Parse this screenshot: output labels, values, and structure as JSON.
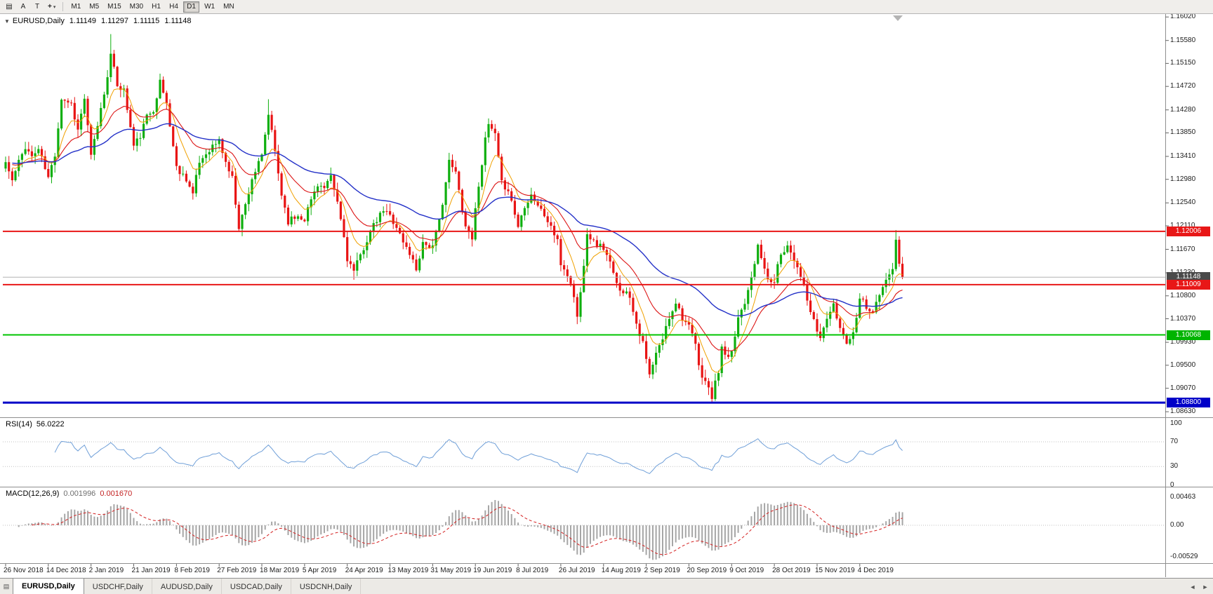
{
  "toolbar": {
    "chart_grid_icon": "▤",
    "tool_a": "A",
    "tool_t": "T",
    "crosshair_icon": "+",
    "dropdown_caret": "▾",
    "timeframes": [
      {
        "label": "M1",
        "active": false
      },
      {
        "label": "M5",
        "active": false
      },
      {
        "label": "M15",
        "active": false
      },
      {
        "label": "M30",
        "active": false
      },
      {
        "label": "H1",
        "active": false
      },
      {
        "label": "H4",
        "active": false
      },
      {
        "label": "D1",
        "active": true
      },
      {
        "label": "W1",
        "active": false
      },
      {
        "label": "MN",
        "active": false
      }
    ]
  },
  "chart": {
    "title": {
      "marker": "▼",
      "symbol": "EURUSD,Daily",
      "open": "1.11149",
      "high": "1.11297",
      "low": "1.11115",
      "close": "1.11148"
    },
    "price_axis_ticks": [
      "1.16020",
      "1.15580",
      "1.15150",
      "1.14720",
      "1.14280",
      "1.13850",
      "1.13410",
      "1.12980",
      "1.12540",
      "1.12110",
      "1.11670",
      "1.11230",
      "1.10800",
      "1.10370",
      "1.09930",
      "1.09500",
      "1.09070",
      "1.08630"
    ],
    "badges": [
      {
        "value": "1.12006",
        "bg": "#e81717",
        "fg": "#ffffff"
      },
      {
        "value": "1.11148",
        "bg": "#4a4a4a",
        "fg": "#ffffff"
      },
      {
        "value": "1.11009",
        "bg": "#e81717",
        "fg": "#ffffff"
      },
      {
        "value": "1.10068",
        "bg": "#00b400",
        "fg": "#ffffff"
      },
      {
        "value": "1.08800",
        "bg": "#0000c8",
        "fg": "#ffffff"
      }
    ],
    "hlines": [
      {
        "price": 1.12006,
        "color": "#e81717",
        "width": 2
      },
      {
        "price": 1.11009,
        "color": "#e81717",
        "width": 2
      },
      {
        "price": 1.10068,
        "color": "#00c400",
        "width": 2
      },
      {
        "price": 1.088,
        "color": "#0000c8",
        "width": 3
      }
    ],
    "current_price": 1.11148,
    "colors": {
      "up": "#0faf0f",
      "down": "#e81414",
      "ma_fast": "#f0a000",
      "ma_mid": "#dc1414",
      "ma_slow": "#2431c8",
      "current_line": "#b4b4b4"
    }
  },
  "rsi": {
    "label": "RSI(14)",
    "value": "56.0222",
    "period": 14,
    "levels": [
      "100",
      "70",
      "30",
      "0"
    ],
    "level_values": [
      100,
      70,
      30,
      0
    ],
    "color": "#6f9fd8"
  },
  "macd": {
    "label": "MACD(12,26,9)",
    "main_value": "0.001996",
    "signal_value": "0.001670",
    "axis_labels": [
      "0.00463",
      "0.00",
      "-0.00529"
    ],
    "axis_values": [
      0.00463,
      0,
      -0.00529
    ],
    "bar_color": "#a6a6a6",
    "signal_color": "#d42020"
  },
  "date_axis": {
    "step_candles": 13,
    "labels": [
      "26 Nov 2018",
      "14 Dec 2018",
      "2 Jan 2019",
      "21 Jan 2019",
      "8 Feb 2019",
      "27 Feb 2019",
      "18 Mar 2019",
      "5 Apr 2019",
      "24 Apr 2019",
      "13 May 2019",
      "31 May 2019",
      "19 Jun 2019",
      "8 Jul 2019",
      "26 Jul 2019",
      "14 Aug 2019",
      "2 Sep 2019",
      "20 Sep 2019",
      "9 Oct 2019",
      "28 Oct 2019",
      "15 Nov 2019",
      "4 Dec 2019"
    ]
  },
  "tabs": {
    "list_icon": "▤",
    "scroll_left": "◄",
    "scroll_right": "►",
    "items": [
      {
        "label": "EURUSD,Daily",
        "active": true
      },
      {
        "label": "USDCHF,Daily",
        "active": false
      },
      {
        "label": "AUDUSD,Daily",
        "active": false
      },
      {
        "label": "USDCAD,Daily",
        "active": false
      },
      {
        "label": "USDCNH,Daily",
        "active": false
      }
    ]
  },
  "chart_data": {
    "type": "candlestick",
    "symbol": "EURUSD",
    "timeframe": "Daily",
    "last_ohlc": {
      "open": 1.11149,
      "high": 1.11297,
      "low": 1.11115,
      "close": 1.11148
    },
    "visible_price_axis_range": [
      1.0863,
      1.1602
    ],
    "n_candles": 274,
    "close_anchors": [
      [
        0,
        1.133
      ],
      [
        2,
        1.1295
      ],
      [
        4,
        1.133
      ],
      [
        6,
        1.136
      ],
      [
        8,
        1.134
      ],
      [
        10,
        1.1355
      ],
      [
        13,
        1.13
      ],
      [
        15,
        1.1345
      ],
      [
        17,
        1.145
      ],
      [
        20,
        1.144
      ],
      [
        22,
        1.139
      ],
      [
        24,
        1.145
      ],
      [
        26,
        1.134
      ],
      [
        28,
        1.14
      ],
      [
        30,
        1.146
      ],
      [
        32,
        1.153
      ],
      [
        34,
        1.1475
      ],
      [
        36,
        1.1465
      ],
      [
        39,
        1.136
      ],
      [
        41,
        1.138
      ],
      [
        43,
        1.1415
      ],
      [
        45,
        1.143
      ],
      [
        47,
        1.148
      ],
      [
        49,
        1.144
      ],
      [
        52,
        1.132
      ],
      [
        55,
        1.13
      ],
      [
        57,
        1.127
      ],
      [
        59,
        1.133
      ],
      [
        62,
        1.1355
      ],
      [
        65,
        1.137
      ],
      [
        67,
        1.133
      ],
      [
        69,
        1.13
      ],
      [
        71,
        1.121
      ],
      [
        73,
        1.125
      ],
      [
        75,
        1.13
      ],
      [
        78,
        1.134
      ],
      [
        80,
        1.142
      ],
      [
        82,
        1.135
      ],
      [
        84,
        1.127
      ],
      [
        86,
        1.122
      ],
      [
        89,
        1.123
      ],
      [
        91,
        1.1225
      ],
      [
        93,
        1.126
      ],
      [
        95,
        1.129
      ],
      [
        97,
        1.128
      ],
      [
        99,
        1.13
      ],
      [
        101,
        1.1255
      ],
      [
        103,
        1.119
      ],
      [
        104,
        1.115
      ],
      [
        106,
        1.1125
      ],
      [
        108,
        1.1155
      ],
      [
        111,
        1.12
      ],
      [
        113,
        1.122
      ],
      [
        115,
        1.124
      ],
      [
        117,
        1.123
      ],
      [
        119,
        1.121
      ],
      [
        121,
        1.118
      ],
      [
        123,
        1.116
      ],
      [
        125,
        1.113
      ],
      [
        127,
        1.118
      ],
      [
        130,
        1.117
      ],
      [
        132,
        1.122
      ],
      [
        135,
        1.133
      ],
      [
        137,
        1.131
      ],
      [
        140,
        1.121
      ],
      [
        142,
        1.119
      ],
      [
        144,
        1.129
      ],
      [
        146,
        1.137
      ],
      [
        147,
        1.14
      ],
      [
        149,
        1.138
      ],
      [
        151,
        1.129
      ],
      [
        153,
        1.128
      ],
      [
        156,
        1.121
      ],
      [
        158,
        1.125
      ],
      [
        160,
        1.127
      ],
      [
        162,
        1.125
      ],
      [
        164,
        1.123
      ],
      [
        166,
        1.121
      ],
      [
        168,
        1.118
      ],
      [
        169,
        1.114
      ],
      [
        171,
        1.112
      ],
      [
        173,
        1.108
      ],
      [
        174,
        1.104
      ],
      [
        175,
        1.1085
      ],
      [
        177,
        1.12
      ],
      [
        179,
        1.118
      ],
      [
        182,
        1.117
      ],
      [
        184,
        1.114
      ],
      [
        186,
        1.11
      ],
      [
        188,
        1.109
      ],
      [
        190,
        1.108
      ],
      [
        192,
        1.103
      ],
      [
        194,
        1.099
      ],
      [
        196,
        1.093
      ],
      [
        198,
        1.097
      ],
      [
        200,
        1.1
      ],
      [
        202,
        1.104
      ],
      [
        204,
        1.107
      ],
      [
        206,
        1.104
      ],
      [
        208,
        1.102
      ],
      [
        210,
        1.099
      ],
      [
        211,
        1.0945
      ],
      [
        213,
        1.092
      ],
      [
        215,
        1.089
      ],
      [
        217,
        1.094
      ],
      [
        218,
        1.098
      ],
      [
        220,
        1.096
      ],
      [
        221,
        1.097
      ],
      [
        223,
        1.104
      ],
      [
        225,
        1.107
      ],
      [
        227,
        1.112
      ],
      [
        229,
        1.117
      ],
      [
        231,
        1.113
      ],
      [
        233,
        1.11
      ],
      [
        234,
        1.111
      ],
      [
        236,
        1.116
      ],
      [
        238,
        1.1175
      ],
      [
        240,
        1.115
      ],
      [
        242,
        1.112
      ],
      [
        244,
        1.107
      ],
      [
        246,
        1.103
      ],
      [
        248,
        1.1
      ],
      [
        250,
        1.104
      ],
      [
        252,
        1.106
      ],
      [
        254,
        1.102
      ],
      [
        256,
        1.0995
      ],
      [
        258,
        1.101
      ],
      [
        260,
        1.108
      ],
      [
        262,
        1.106
      ],
      [
        264,
        1.105
      ],
      [
        266,
        1.108
      ],
      [
        268,
        1.111
      ],
      [
        270,
        1.113
      ],
      [
        271,
        1.1185
      ],
      [
        272,
        1.114
      ],
      [
        273,
        1.1115
      ]
    ],
    "high_overrides": {
      "32": 1.157,
      "80": 1.1448,
      "147": 1.1412,
      "271": 1.1203
    },
    "low_overrides": {
      "106": 1.111,
      "174": 1.1027,
      "196": 1.0926,
      "215": 1.0879
    },
    "moving_averages": [
      {
        "period": 8,
        "color_key": "ma_fast",
        "width": 1
      },
      {
        "period": 21,
        "color_key": "ma_mid",
        "width": 1.1
      },
      {
        "period": 55,
        "color_key": "ma_slow",
        "width": 1.4
      }
    ],
    "indicators": [
      {
        "name": "RSI",
        "params": [
          14
        ],
        "last_value": 56.0222
      },
      {
        "name": "MACD",
        "params": [
          12,
          26,
          9
        ],
        "last_values": [
          0.001996,
          0.00167
        ]
      }
    ]
  }
}
